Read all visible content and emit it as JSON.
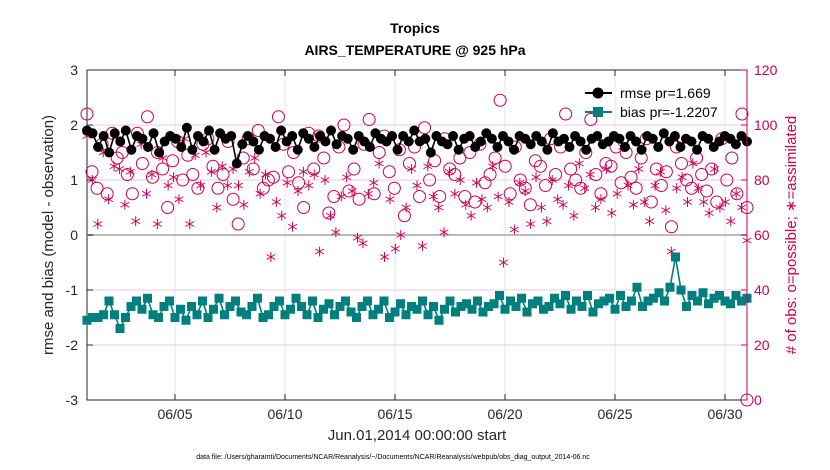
{
  "chart_data": {
    "type": "line",
    "title": "Tropics",
    "subtitle": "AIRS_TEMPERATURE @ 925 hPa",
    "xlabel": "Jun.01,2014 00:00:00 start",
    "ylabel_left": "rmse and bias (model - observation)",
    "ylabel_right": "# of obs: o=possible; ∗=assimilated",
    "footnote": "data file: /Users/gharamti/Documents/NCAR/Reanalysis/~/Documents/NCAR/Reanalysis/webpub/obs_diag_output_2014-06.nc",
    "xlim": [
      1,
      31
    ],
    "ylim_left": [
      -3,
      3
    ],
    "ylim_right": [
      0,
      120
    ],
    "x_ticks": [
      5,
      10,
      15,
      20,
      25,
      30
    ],
    "x_tick_labels": [
      "06/05",
      "06/10",
      "06/15",
      "06/20",
      "06/25",
      "06/30"
    ],
    "y_left_ticks": [
      "-3",
      "-2",
      "-1",
      "0",
      "1",
      "2",
      "3"
    ],
    "y_right_ticks": [
      "0",
      "20",
      "40",
      "60",
      "80",
      "100",
      "120"
    ],
    "legend": {
      "position": "top-right",
      "entries": [
        "rmse pr=1.669",
        "bias pr=-1.2207"
      ]
    },
    "colors": {
      "rmse": "#000000",
      "bias": "#007f7f",
      "obs": "#cc0055",
      "zero_line": "#bbbbbb"
    },
    "series": [
      {
        "name": "rmse",
        "axis": "left",
        "marker": "circle-filled",
        "values": [
          1.9,
          1.85,
          1.6,
          1.8,
          1.5,
          1.85,
          1.7,
          1.9,
          1.55,
          1.8,
          1.75,
          1.6,
          1.85,
          1.5,
          1.7,
          1.8,
          1.75,
          1.6,
          1.95,
          1.55,
          1.8,
          1.7,
          1.9,
          1.55,
          1.85,
          1.75,
          1.8,
          1.3,
          1.65,
          1.8,
          1.7,
          1.55,
          1.8,
          1.75,
          1.6,
          1.9,
          1.7,
          1.8,
          1.55,
          1.85,
          1.75,
          1.6,
          1.8,
          1.7,
          1.9,
          1.65,
          1.8,
          1.75,
          1.55,
          1.8,
          1.7,
          1.6,
          1.85,
          1.75,
          1.7,
          1.8,
          1.55,
          1.8,
          1.7,
          1.9,
          1.7,
          1.75,
          1.5,
          1.8,
          1.7,
          1.65,
          1.8,
          1.55,
          1.75,
          1.8,
          1.6,
          1.7,
          1.85,
          1.75,
          1.6,
          1.8,
          1.7,
          1.55,
          1.8,
          1.75,
          1.65,
          1.8,
          1.7,
          1.55,
          1.85,
          1.7,
          1.75,
          1.6,
          1.8,
          1.7,
          1.55,
          1.75,
          1.8,
          1.65,
          1.7,
          1.8,
          1.75,
          1.6,
          1.8,
          1.7,
          1.55,
          1.8,
          1.75,
          1.6,
          1.85,
          1.7,
          1.8,
          1.6,
          1.75,
          1.7,
          1.55,
          1.8,
          1.75,
          1.6,
          1.7,
          1.8,
          1.75,
          1.65,
          1.8,
          1.7
        ]
      },
      {
        "name": "bias",
        "axis": "left",
        "marker": "square-filled",
        "values": [
          -1.55,
          -1.5,
          -1.5,
          -1.45,
          -1.2,
          -1.45,
          -1.7,
          -1.5,
          -1.3,
          -1.2,
          -1.35,
          -1.15,
          -1.45,
          -1.5,
          -1.3,
          -1.2,
          -1.5,
          -1.35,
          -1.55,
          -1.3,
          -1.45,
          -1.2,
          -1.5,
          -1.35,
          -1.15,
          -1.45,
          -1.3,
          -1.2,
          -1.4,
          -1.45,
          -1.3,
          -1.15,
          -1.5,
          -1.45,
          -1.3,
          -1.2,
          -1.45,
          -1.35,
          -1.15,
          -1.3,
          -1.45,
          -1.2,
          -1.5,
          -1.35,
          -1.25,
          -1.45,
          -1.3,
          -1.2,
          -1.4,
          -1.5,
          -1.3,
          -1.2,
          -1.45,
          -1.35,
          -1.2,
          -1.5,
          -1.4,
          -1.25,
          -1.45,
          -1.3,
          -1.35,
          -1.2,
          -1.45,
          -1.3,
          -1.55,
          -1.35,
          -1.2,
          -1.4,
          -1.3,
          -1.25,
          -1.35,
          -1.2,
          -1.4,
          -1.3,
          -1.25,
          -1.1,
          -1.35,
          -1.2,
          -1.3,
          -1.15,
          -1.4,
          -1.25,
          -1.2,
          -1.35,
          -1.3,
          -1.15,
          -1.25,
          -1.1,
          -1.35,
          -1.2,
          -1.3,
          -1.1,
          -1.4,
          -1.25,
          -1.2,
          -1.15,
          -1.35,
          -1.1,
          -1.3,
          -1.2,
          -0.95,
          -1.3,
          -1.2,
          -1.15,
          -1.05,
          -1.2,
          -0.95,
          -0.4,
          -1.0,
          -1.3,
          -1.1,
          -1.2,
          -1.05,
          -1.25,
          -1.15,
          -1.1,
          -1.2,
          -1.25,
          -1.1,
          -1.2,
          -1.15
        ]
      },
      {
        "name": "obs possible",
        "axis": "right",
        "marker": "circle-open",
        "values": [
          104,
          83,
          77,
          93,
          75,
          97,
          88,
          90,
          82,
          75,
          97,
          86,
          103,
          81,
          90,
          84,
          70,
          87,
          94,
          80,
          89,
          82,
          77,
          93,
          95,
          85,
          77,
          82,
          94,
          73,
          64,
          88,
          95,
          84,
          98,
          77,
          80,
          81,
          103,
          93,
          83,
          90,
          79,
          70,
          97,
          84,
          96,
          88,
          68,
          74,
          92,
          100,
          76,
          84,
          73,
          93,
          102,
          75,
          90,
          96,
          83,
          77,
          91,
          67,
          86,
          92,
          74,
          99,
          80,
          87,
          74,
          95,
          84,
          82,
          88,
          74,
          90,
          72,
          93,
          79,
          82,
          88,
          109,
          85,
          75,
          92,
          80,
          77,
          71,
          87,
          85,
          78,
          95,
          82,
          92,
          104,
          84,
          80,
          77,
          90,
          102,
          82,
          75,
          86,
          85,
          92,
          79,
          90,
          81,
          77,
          88,
          95,
          72,
          84,
          78,
          83,
          63,
          92,
          86,
          80,
          77,
          88,
          82,
          76,
          84,
          72,
          95,
          80,
          88,
          75,
          104,
          70
        ]
      },
      {
        "name": "obs assimilated",
        "axis": "right",
        "marker": "asterisk",
        "values": [
          96,
          80,
          64,
          90,
          73,
          85,
          84,
          71,
          83,
          65,
          93,
          75,
          82,
          64,
          88,
          78,
          81,
          73,
          95,
          64,
          89,
          78,
          90,
          83,
          70,
          85,
          78,
          84,
          78,
          71,
          83,
          88,
          75,
          82,
          52,
          72,
          67,
          79,
          63,
          76,
          83,
          78,
          82,
          54,
          80,
          67,
          61,
          74,
          81,
          76,
          59,
          57,
          75,
          79,
          86,
          52,
          73,
          55,
          60,
          70,
          84,
          78,
          56,
          85,
          74,
          70,
          61,
          83,
          75,
          80,
          71,
          67,
          79,
          73,
          70,
          85,
          74,
          50,
          72,
          62,
          79,
          76,
          64,
          81,
          70,
          65,
          80,
          73,
          71,
          78,
          67,
          86,
          77,
          82,
          70,
          73,
          84,
          68,
          75,
          92,
          78,
          71,
          84,
          72,
          65,
          78,
          83,
          69,
          54,
          77,
          81,
          72,
          86,
          77,
          72,
          68,
          84,
          70,
          72,
          65,
          75,
          70,
          58
        ]
      }
    ]
  }
}
